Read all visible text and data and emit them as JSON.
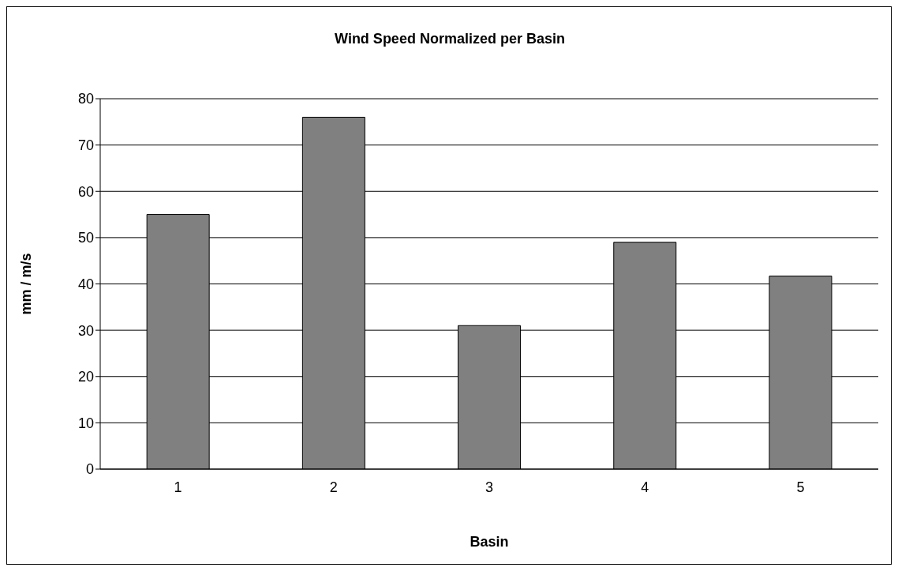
{
  "chart_data": {
    "type": "bar",
    "title": "Wind Speed Normalized per Basin",
    "xlabel": "Basin",
    "ylabel": "mm / m/s",
    "categories": [
      "1",
      "2",
      "3",
      "4",
      "5"
    ],
    "values": [
      55,
      76,
      31,
      49,
      41.7
    ],
    "color": "#808080",
    "ylim": [
      0,
      80
    ],
    "yticks": [
      0,
      10,
      20,
      30,
      40,
      50,
      60,
      70,
      80
    ],
    "grid": "y",
    "legend": false
  }
}
